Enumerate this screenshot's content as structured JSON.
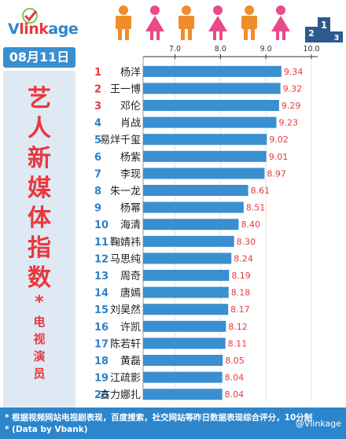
{
  "brand": {
    "name_v": "V",
    "name_link": "link",
    "name_age": "age"
  },
  "date": "08月11日",
  "side_title": [
    "艺",
    "人",
    "新",
    "媒",
    "体",
    "指",
    "数"
  ],
  "side_star": "*",
  "side_subtitle": [
    "电",
    "视",
    "演",
    "员"
  ],
  "footer": {
    "line1": "* 根据视频网站电视剧表现，百度搜索，社交网站等昨日数据表现综合评分，10分制",
    "line2": "* (Data by Vbank)"
  },
  "watermark": "@Vlinkage",
  "colors": {
    "bar": "#3a8fd0",
    "rank": "#2f7fc6",
    "rank_top3": "#e8383d",
    "value": "#e8383d",
    "side_bg": "#dfe9f4",
    "footer_bg": "#2d86cc",
    "brand_blue": "#2d86cc",
    "brand_red": "#e8383d"
  },
  "icons": [
    "person-orange-icon",
    "person-pink-icon",
    "person-orange-icon",
    "person-pink-icon",
    "person-orange-icon",
    "person-pink-icon",
    "podium-icon"
  ],
  "chart_data": {
    "type": "bar",
    "orientation": "horizontal",
    "xlim": [
      6.3,
      10.0
    ],
    "x_ticks": [
      "7.0",
      "8.0",
      "9.0",
      "10.0"
    ],
    "x_tick_values": [
      7.0,
      8.0,
      9.0,
      10.0
    ],
    "ranks": [
      "1",
      "2",
      "3",
      "4",
      "5",
      "6",
      "7",
      "8",
      "9",
      "10",
      "11",
      "12",
      "13",
      "14",
      "15",
      "16",
      "17",
      "18",
      "19",
      "20"
    ],
    "categories": [
      "杨洋",
      "王一博",
      "邓伦",
      "肖战",
      "易烊千玺",
      "杨紫",
      "李现",
      "朱一龙",
      "杨幂",
      "海清",
      "鞠婧祎",
      "马思纯",
      "周奇",
      "唐嫣",
      "刘昊然",
      "许凯",
      "陈若轩",
      "黄磊",
      "江疏影",
      "古力娜扎"
    ],
    "values": [
      9.34,
      9.32,
      9.29,
      9.23,
      9.02,
      9.01,
      8.97,
      8.61,
      8.51,
      8.4,
      8.3,
      8.24,
      8.19,
      8.18,
      8.17,
      8.12,
      8.11,
      8.05,
      8.04,
      8.04
    ],
    "value_labels": [
      "9.34",
      "9.32",
      "9.29",
      "9.23",
      "9.02",
      "9.01",
      "8.97",
      "8.61",
      "8.51",
      "8.40",
      "8.30",
      "8.24",
      "8.19",
      "8.18",
      "8.17",
      "8.12",
      "8.11",
      "8.05",
      "8.04",
      "8.04"
    ],
    "grid": true
  }
}
